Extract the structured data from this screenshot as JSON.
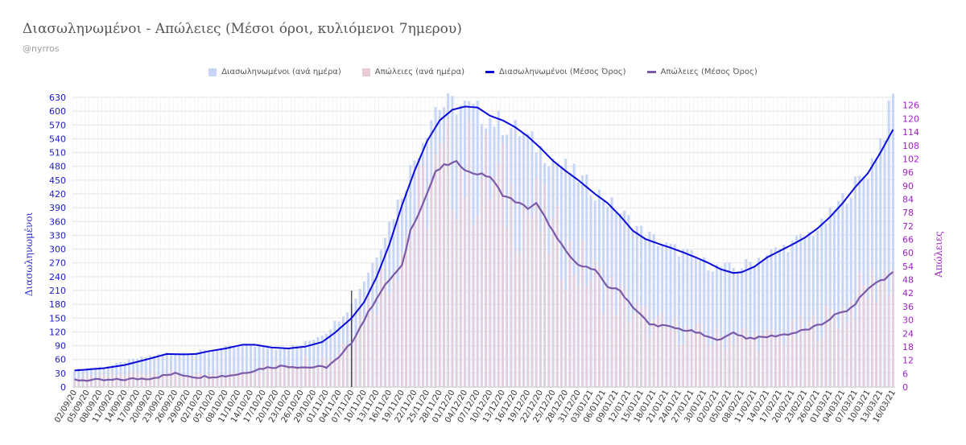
{
  "chart_data": {
    "type": "bar+line",
    "title": "Διασωληνωμένοι - Απώλειες (Μέσοι όροι, κυλιόμενοι 7ημερου)",
    "subtitle": "@nyrros",
    "ylabel_left": "Διασωληνωμένοι",
    "ylabel_right": "Απώλειες",
    "ylim_left": [
      0,
      630
    ],
    "ylim_right": [
      0,
      129.5
    ],
    "yticks_left": [
      0,
      30,
      60,
      90,
      120,
      150,
      180,
      210,
      240,
      270,
      300,
      330,
      360,
      390,
      420,
      450,
      480,
      510,
      540,
      570,
      600,
      630
    ],
    "yticks_right": [
      0,
      6,
      12,
      18,
      24,
      30,
      36,
      42,
      48,
      54,
      60,
      66,
      72,
      78,
      84,
      90,
      96,
      102,
      108,
      114,
      120,
      126
    ],
    "start_date": "2020-09-02",
    "end_date": "2021-03-16",
    "x_tick_labels": [
      "02/09/20",
      "05/09/20",
      "08/09/20",
      "11/09/20",
      "14/09/20",
      "17/09/20",
      "20/09/20",
      "23/09/20",
      "26/09/20",
      "29/09/20",
      "02/10/20",
      "05/10/20",
      "08/10/20",
      "11/10/20",
      "14/10/20",
      "17/10/20",
      "20/10/20",
      "23/10/20",
      "26/10/20",
      "29/10/20",
      "01/11/20",
      "04/11/20",
      "07/11/20",
      "10/11/20",
      "13/11/20",
      "16/11/20",
      "19/11/20",
      "22/11/20",
      "25/11/20",
      "28/11/20",
      "01/12/20",
      "04/12/20",
      "07/12/20",
      "10/12/20",
      "13/12/20",
      "16/12/20",
      "19/12/20",
      "22/12/20",
      "25/12/20",
      "28/12/20",
      "31/12/20",
      "03/01/21",
      "06/01/21",
      "09/01/21",
      "12/01/21",
      "15/01/21",
      "18/01/21",
      "21/01/21",
      "24/01/21",
      "27/01/21",
      "30/01/21",
      "02/02/21",
      "05/02/21",
      "08/02/21",
      "11/02/21",
      "14/02/21",
      "17/02/21",
      "20/02/21",
      "23/02/21",
      "26/02/21",
      "01/03/21",
      "04/03/21",
      "07/03/21",
      "10/03/21",
      "13/03/21",
      "16/03/21"
    ],
    "marker_date": "2020-11-07",
    "marker_value_left": 210,
    "series": [
      {
        "name": "Διασωληνωμένοι (ανά ημέρα)",
        "type": "bar",
        "axis": "left",
        "color": "#c6d4f6",
        "keyframes": [
          [
            "2020-09-02",
            38
          ],
          [
            "2020-09-10",
            46
          ],
          [
            "2020-09-17",
            62
          ],
          [
            "2020-09-24",
            74
          ],
          [
            "2020-10-01",
            76
          ],
          [
            "2020-10-08",
            86
          ],
          [
            "2020-10-14",
            92
          ],
          [
            "2020-10-20",
            84
          ],
          [
            "2020-10-26",
            92
          ],
          [
            "2020-11-01",
            120
          ],
          [
            "2020-11-07",
            180
          ],
          [
            "2020-11-12",
            270
          ],
          [
            "2020-11-18",
            400
          ],
          [
            "2020-11-23",
            520
          ],
          [
            "2020-11-27",
            610
          ],
          [
            "2020-12-02",
            615
          ],
          [
            "2020-12-05",
            605
          ],
          [
            "2020-12-10",
            585
          ],
          [
            "2020-12-17",
            555
          ],
          [
            "2020-12-23",
            510
          ],
          [
            "2020-12-29",
            470
          ],
          [
            "2021-01-05",
            420
          ],
          [
            "2021-01-10",
            380
          ],
          [
            "2021-01-15",
            340
          ],
          [
            "2021-01-20",
            310
          ],
          [
            "2021-01-26",
            290
          ],
          [
            "2021-02-01",
            262
          ],
          [
            "2021-02-07",
            258
          ],
          [
            "2021-02-13",
            285
          ],
          [
            "2021-02-20",
            312
          ],
          [
            "2021-02-27",
            350
          ],
          [
            "2021-03-05",
            420
          ],
          [
            "2021-03-10",
            470
          ],
          [
            "2021-03-14",
            560
          ],
          [
            "2021-03-16",
            630
          ]
        ]
      },
      {
        "name": "Απώλειες (ανά ημέρα)",
        "type": "bar",
        "axis": "right",
        "color": "#e8cdd9",
        "keyframes": [
          [
            "2020-09-02",
            4
          ],
          [
            "2020-09-10",
            5
          ],
          [
            "2020-09-20",
            7
          ],
          [
            "2020-10-01",
            5
          ],
          [
            "2020-10-10",
            6
          ],
          [
            "2020-10-20",
            10
          ],
          [
            "2020-10-28",
            12
          ],
          [
            "2020-11-03",
            14
          ],
          [
            "2020-11-08",
            28
          ],
          [
            "2020-11-15",
            50
          ],
          [
            "2020-11-20",
            68
          ],
          [
            "2020-11-25",
            88
          ],
          [
            "2020-11-28",
            94
          ],
          [
            "2020-12-02",
            100
          ],
          [
            "2020-12-06",
            95
          ],
          [
            "2020-12-10",
            92
          ],
          [
            "2020-12-15",
            84
          ],
          [
            "2020-12-20",
            78
          ],
          [
            "2020-12-25",
            66
          ],
          [
            "2020-12-30",
            56
          ],
          [
            "2021-01-04",
            48
          ],
          [
            "2021-01-08",
            42
          ],
          [
            "2021-01-13",
            34
          ],
          [
            "2021-01-18",
            27
          ],
          [
            "2021-01-25",
            25
          ],
          [
            "2021-02-01",
            21
          ],
          [
            "2021-02-07",
            24
          ],
          [
            "2021-02-13",
            21
          ],
          [
            "2021-02-20",
            24
          ],
          [
            "2021-02-26",
            28
          ],
          [
            "2021-03-04",
            34
          ],
          [
            "2021-03-10",
            44
          ],
          [
            "2021-03-16",
            52
          ]
        ]
      },
      {
        "name": "Διασωληνωμένοι (Μέσος Όρος)",
        "type": "line",
        "axis": "left",
        "color": "#0a0ad8",
        "keyframes": [
          [
            "2020-09-02",
            36
          ],
          [
            "2020-09-09",
            41
          ],
          [
            "2020-09-14",
            48
          ],
          [
            "2020-09-20",
            62
          ],
          [
            "2020-09-24",
            72
          ],
          [
            "2020-09-28",
            71
          ],
          [
            "2020-10-01",
            72
          ],
          [
            "2020-10-04",
            78
          ],
          [
            "2020-10-08",
            84
          ],
          [
            "2020-10-12",
            92
          ],
          [
            "2020-10-15",
            92
          ],
          [
            "2020-10-19",
            86
          ],
          [
            "2020-10-23",
            84
          ],
          [
            "2020-10-27",
            88
          ],
          [
            "2020-10-31",
            98
          ],
          [
            "2020-11-03",
            118
          ],
          [
            "2020-11-07",
            150
          ],
          [
            "2020-11-10",
            185
          ],
          [
            "2020-11-13",
            240
          ],
          [
            "2020-11-16",
            310
          ],
          [
            "2020-11-19",
            395
          ],
          [
            "2020-11-22",
            470
          ],
          [
            "2020-11-25",
            535
          ],
          [
            "2020-11-28",
            580
          ],
          [
            "2020-12-01",
            603
          ],
          [
            "2020-12-04",
            610
          ],
          [
            "2020-12-07",
            608
          ],
          [
            "2020-12-10",
            590
          ],
          [
            "2020-12-13",
            580
          ],
          [
            "2020-12-16",
            565
          ],
          [
            "2020-12-19",
            545
          ],
          [
            "2020-12-22",
            520
          ],
          [
            "2020-12-25",
            492
          ],
          [
            "2020-12-28",
            470
          ],
          [
            "2020-12-31",
            450
          ],
          [
            "2021-01-04",
            420
          ],
          [
            "2021-01-07",
            400
          ],
          [
            "2021-01-10",
            372
          ],
          [
            "2021-01-13",
            340
          ],
          [
            "2021-01-16",
            322
          ],
          [
            "2021-01-19",
            312
          ],
          [
            "2021-01-22",
            303
          ],
          [
            "2021-01-25",
            293
          ],
          [
            "2021-01-28",
            282
          ],
          [
            "2021-01-31",
            270
          ],
          [
            "2021-02-03",
            256
          ],
          [
            "2021-02-06",
            248
          ],
          [
            "2021-02-08",
            250
          ],
          [
            "2021-02-11",
            262
          ],
          [
            "2021-02-14",
            282
          ],
          [
            "2021-02-17",
            296
          ],
          [
            "2021-02-20",
            310
          ],
          [
            "2021-02-23",
            325
          ],
          [
            "2021-02-26",
            345
          ],
          [
            "2021-03-01",
            370
          ],
          [
            "2021-03-04",
            400
          ],
          [
            "2021-03-07",
            435
          ],
          [
            "2021-03-10",
            465
          ],
          [
            "2021-03-13",
            510
          ],
          [
            "2021-03-16",
            560
          ]
        ]
      },
      {
        "name": "Απώλειες (Μέσος Όρος)",
        "type": "line",
        "axis": "right",
        "color": "#7a5aa8",
        "keyframes": [
          [
            "2020-09-02",
            3.2
          ],
          [
            "2020-09-10",
            3.0
          ],
          [
            "2020-09-20",
            4.0
          ],
          [
            "2020-09-26",
            6.0
          ],
          [
            "2020-10-01",
            4.5
          ],
          [
            "2020-10-08",
            5.0
          ],
          [
            "2020-10-11",
            5.8
          ],
          [
            "2020-10-17",
            8.5
          ],
          [
            "2020-10-22",
            9.5
          ],
          [
            "2020-10-27",
            8.8
          ],
          [
            "2020-11-01",
            9.0
          ],
          [
            "2020-11-04",
            13.0
          ],
          [
            "2020-11-07",
            20.0
          ],
          [
            "2020-11-10",
            30.0
          ],
          [
            "2020-11-13",
            40.0
          ],
          [
            "2020-11-16",
            48.0
          ],
          [
            "2020-11-19",
            54.0
          ],
          [
            "2020-11-21",
            70.0
          ],
          [
            "2020-11-24",
            82.0
          ],
          [
            "2020-11-27",
            96.0
          ],
          [
            "2020-11-29",
            99.0
          ],
          [
            "2020-12-02",
            100.5
          ],
          [
            "2020-12-05",
            96.0
          ],
          [
            "2020-12-08",
            95.0
          ],
          [
            "2020-12-10",
            94.0
          ],
          [
            "2020-12-13",
            86.0
          ],
          [
            "2020-12-16",
            83.0
          ],
          [
            "2020-12-19",
            80.0
          ],
          [
            "2020-12-21",
            82.0
          ],
          [
            "2020-12-24",
            73.0
          ],
          [
            "2020-12-26",
            66.0
          ],
          [
            "2020-12-30",
            56.0
          ],
          [
            "2021-01-04",
            52.0
          ],
          [
            "2021-01-07",
            45.0
          ],
          [
            "2021-01-10",
            43.0
          ],
          [
            "2021-01-13",
            36.0
          ],
          [
            "2021-01-17",
            28.0
          ],
          [
            "2021-01-20",
            27.5
          ],
          [
            "2021-01-24",
            26.0
          ],
          [
            "2021-01-28",
            24.5
          ],
          [
            "2021-02-01",
            21.5
          ],
          [
            "2021-02-04",
            22.0
          ],
          [
            "2021-02-06",
            24.5
          ],
          [
            "2021-02-09",
            22.0
          ],
          [
            "2021-02-12",
            22.0
          ],
          [
            "2021-02-16",
            23.0
          ],
          [
            "2021-02-20",
            24.0
          ],
          [
            "2021-02-24",
            26.0
          ],
          [
            "2021-02-27",
            28.0
          ],
          [
            "2021-03-02",
            32.0
          ],
          [
            "2021-03-06",
            35.0
          ],
          [
            "2021-03-09",
            42.0
          ],
          [
            "2021-03-12",
            47.0
          ],
          [
            "2021-03-14",
            48.0
          ],
          [
            "2021-03-16",
            52.0
          ]
        ]
      }
    ],
    "legend_position": "top-center"
  }
}
